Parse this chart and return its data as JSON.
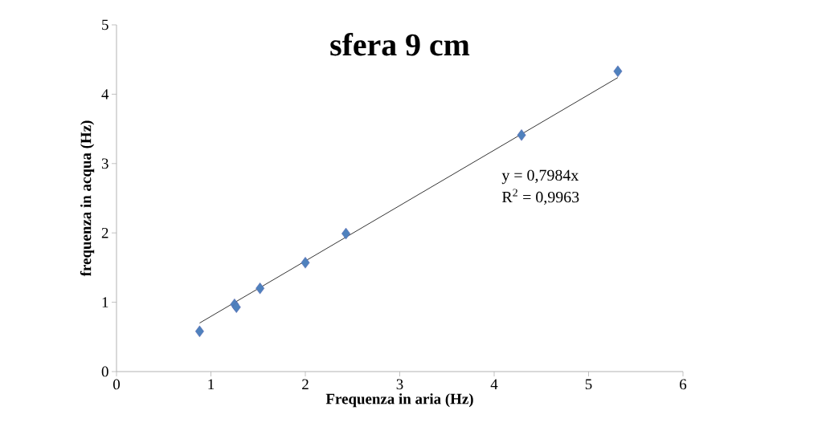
{
  "chart_data": {
    "type": "scatter",
    "title": "sfera 9 cm",
    "xlabel": "Frequenza in aria (Hz)",
    "ylabel": "frequenza in acqua (Hz)",
    "xlim": [
      0,
      6
    ],
    "ylim": [
      0,
      5
    ],
    "xticks": [
      0,
      1,
      2,
      3,
      4,
      5,
      6
    ],
    "yticks": [
      0,
      1,
      2,
      3,
      4,
      5
    ],
    "series": [
      {
        "color": "#4f81bd",
        "marker": "diamond",
        "x": [
          0.88,
          1.25,
          1.27,
          1.52,
          2.0,
          2.43,
          4.29,
          5.31
        ],
        "values": [
          0.58,
          0.97,
          0.93,
          1.2,
          1.57,
          1.99,
          3.41,
          4.33
        ]
      },
      {
        "type": "line",
        "color": "#000000",
        "marker": "none",
        "x": [
          0.88,
          5.31
        ],
        "values": [
          0.7,
          4.24
        ]
      }
    ],
    "annotations": [
      "y = 0,7984x",
      "R$^{2}$ = 0,9963"
    ]
  }
}
